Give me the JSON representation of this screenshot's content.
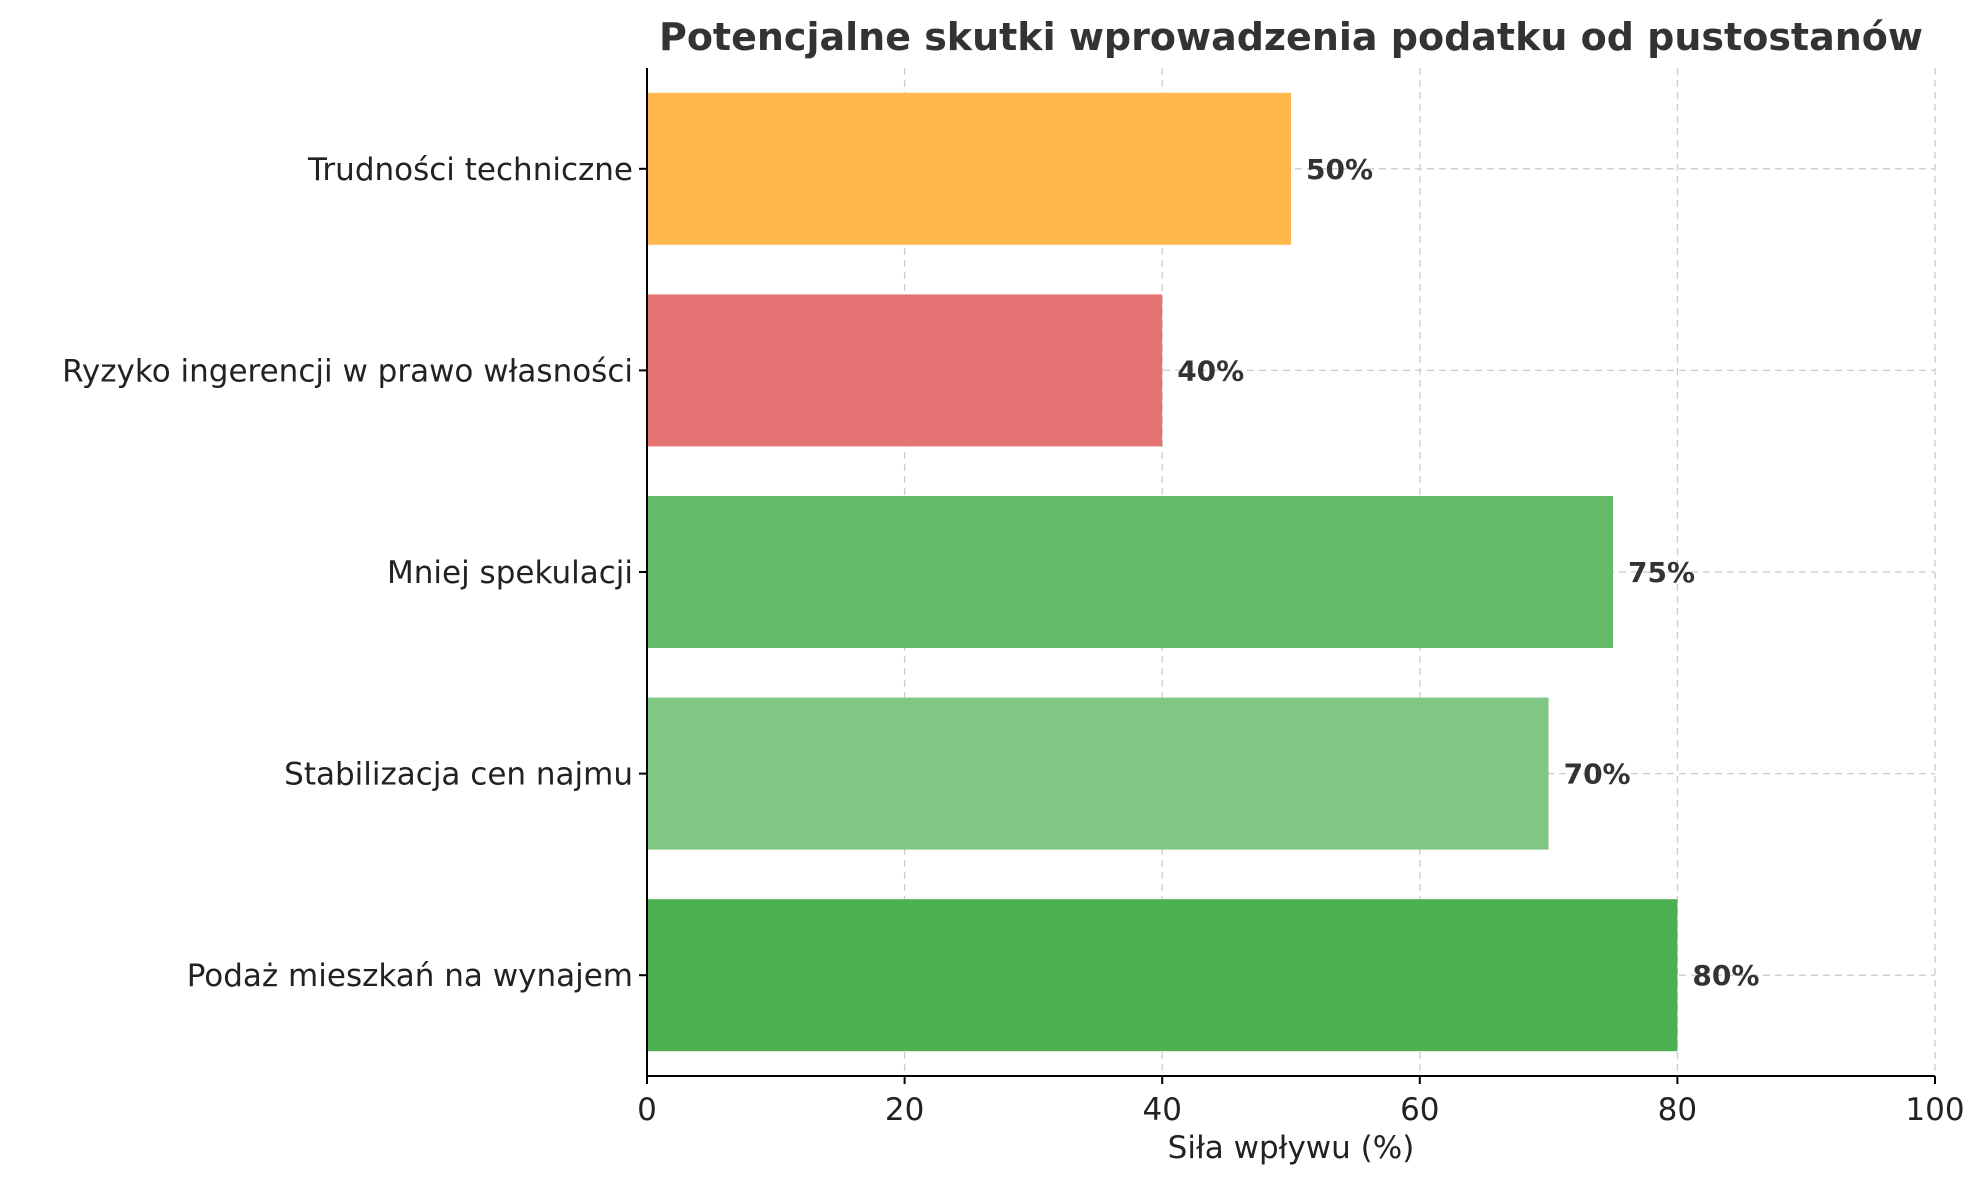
{
  "chart_data": {
    "type": "bar",
    "orientation": "horizontal",
    "title": "Potencjalne skutki wprowadzenia podatku od pustostanów",
    "xlabel": "Siła wpływu (%)",
    "ylabel": "",
    "xlim": [
      0,
      100
    ],
    "xticks": [
      0,
      20,
      40,
      60,
      80,
      100
    ],
    "grid": true,
    "categories": [
      "Podaż mieszkań na wynajem",
      "Stabilizacja cen najmu",
      "Mniej spekulacji",
      "Ryzyko ingerencji w prawo własności",
      "Trudności techniczne"
    ],
    "values": [
      80,
      70,
      75,
      40,
      50
    ],
    "value_labels": [
      "80%",
      "70%",
      "75%",
      "40%",
      "50%"
    ],
    "colors": [
      "#4caf50",
      "#81c784",
      "#66bb6a",
      "#e57373",
      "#ffb74d"
    ]
  }
}
